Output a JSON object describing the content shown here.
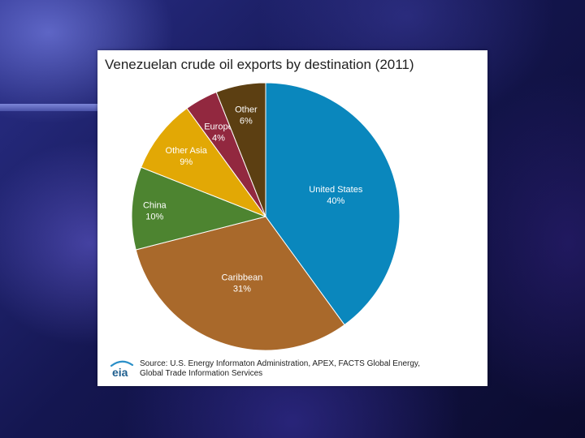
{
  "chart_data": {
    "type": "pie",
    "title": "Venezuelan crude oil exports by destination (2011)",
    "slices": [
      {
        "label": "United States",
        "value": 40,
        "value_label": "40%",
        "color": "#0a87bd",
        "text_color": "#ffffff"
      },
      {
        "label": "Caribbean",
        "value": 31,
        "value_label": "31%",
        "color": "#a9692b",
        "text_color": "#ffffff"
      },
      {
        "label": "China",
        "value": 10,
        "value_label": "10%",
        "color": "#4d8430",
        "text_color": "#ffffff"
      },
      {
        "label": "Other Asia",
        "value": 9,
        "value_label": "9%",
        "color": "#e2a805",
        "text_color": "#ffffff"
      },
      {
        "label": "Europe",
        "value": 4,
        "value_label": "4%",
        "color": "#92283f",
        "text_color": "#ffffff"
      },
      {
        "label": "Other",
        "value": 6,
        "value_label": "6%",
        "color": "#5c3f12",
        "text_color": "#ffffff"
      }
    ],
    "start": "12 o'clock",
    "direction": "clockwise",
    "legend": "none",
    "source_line1": "Source: U.S. Energy Informaton Administration, APEX, FACTS Global Energy,",
    "source_line2": "Global Trade Information Services",
    "logo_text": "eia"
  }
}
